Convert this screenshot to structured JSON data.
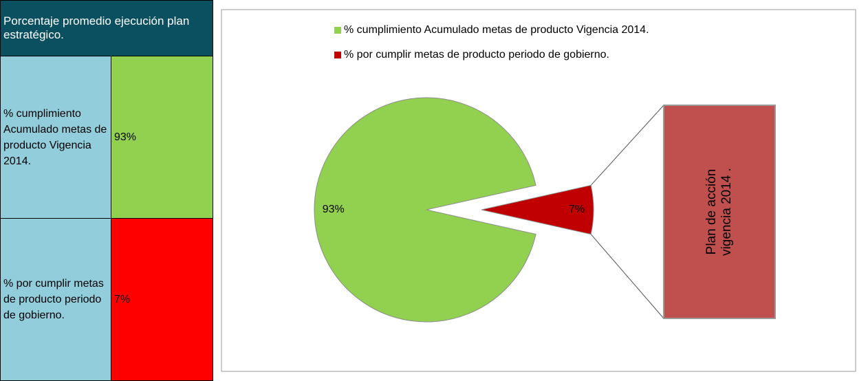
{
  "table": {
    "header": "Porcentaje promedio ejecución plan estratégico.",
    "rows": [
      [
        "% cumplimiento Acumulado metas de producto Vigencia 2014.",
        "93%"
      ],
      [
        "% por cumplir metas de producto periodo de gobierno.",
        "7%"
      ]
    ]
  },
  "chart_data": {
    "type": "pie",
    "categories": [
      "% cumplimiento Acumulado metas de producto Vigencia  2014.",
      "% por cumplir metas de producto periodo de gobierno."
    ],
    "values": [
      93,
      7
    ],
    "value_labels": [
      "93%",
      "7%"
    ],
    "colors": [
      "#92d050",
      "#c00000"
    ],
    "annotation": "Plan de  acción vigencia 2014 ."
  }
}
